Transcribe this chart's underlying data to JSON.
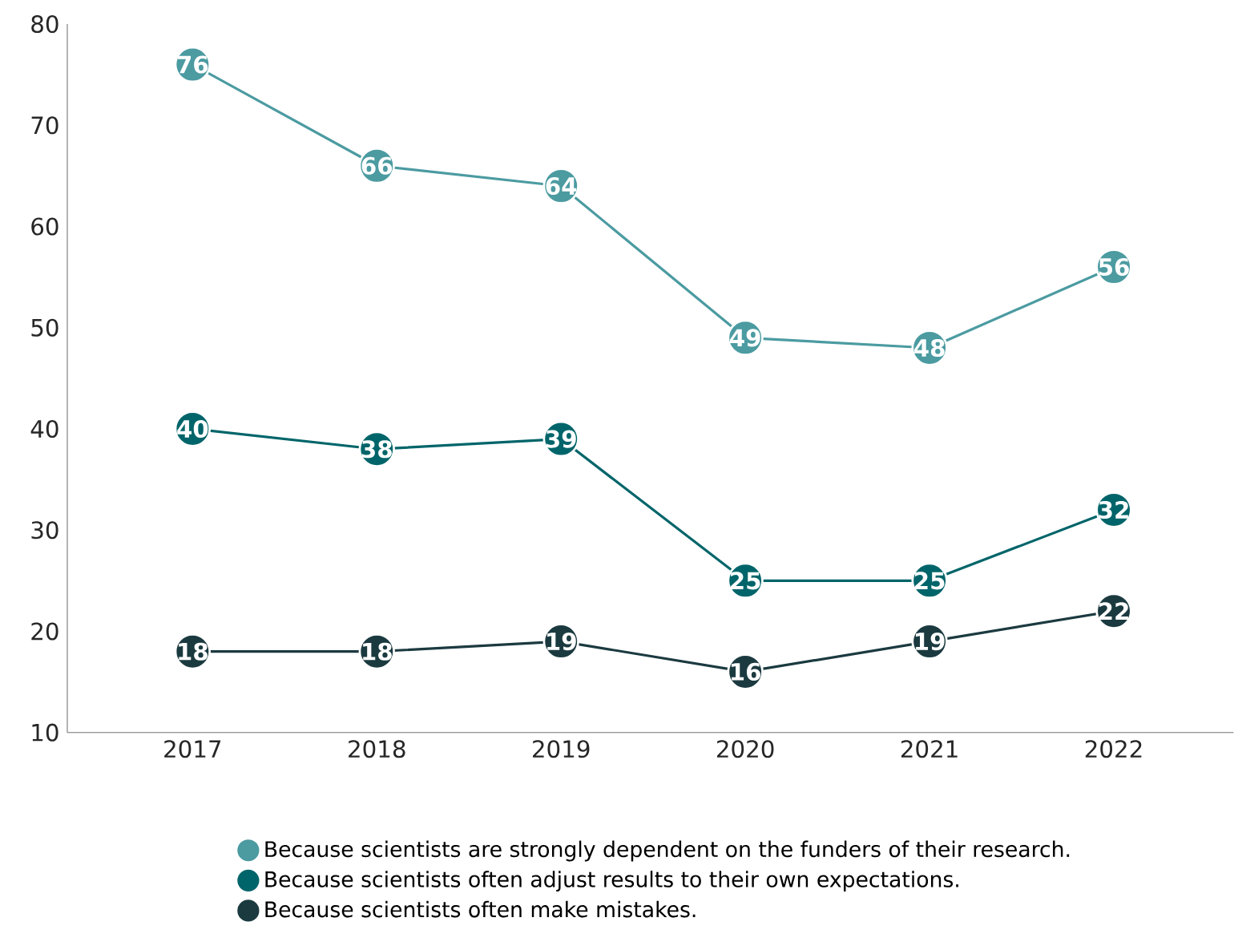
{
  "chart_data": {
    "type": "line",
    "categories": [
      "2017",
      "2018",
      "2019",
      "2020",
      "2021",
      "2022"
    ],
    "series": [
      {
        "name": "Because scientists are strongly dependent on the funders of their research.",
        "color": "#4b9ba1",
        "values": [
          76,
          66,
          64,
          49,
          48,
          56
        ]
      },
      {
        "name": "Because scientists often adjust results to their own expectations.",
        "color": "#00656a",
        "values": [
          40,
          38,
          39,
          25,
          25,
          32
        ]
      },
      {
        "name": "Because scientists often make mistakes.",
        "color": "#1b3a40",
        "values": [
          18,
          18,
          19,
          16,
          19,
          22
        ]
      }
    ],
    "ylim": [
      10,
      80
    ],
    "yticks": [
      10,
      20,
      30,
      40,
      50,
      60,
      70,
      80
    ],
    "marker": "circle",
    "line_style": "solid",
    "data_labels": true,
    "legend": "bottom",
    "grid": false
  }
}
